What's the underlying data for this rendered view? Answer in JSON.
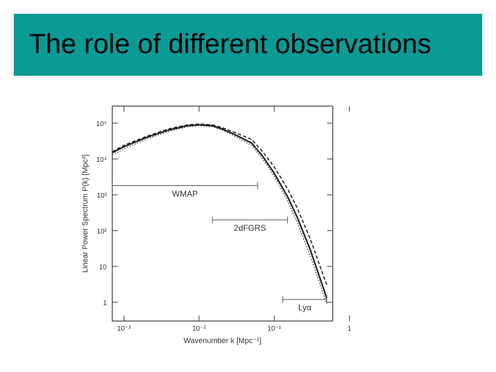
{
  "slide": {
    "title": "The role of different observations"
  },
  "colors": {
    "title_bar": "#0b9a96",
    "curve": "#222222"
  },
  "chart_data": {
    "type": "line",
    "title": "",
    "xlabel": "Wavenumber k [Mpc⁻¹]",
    "ylabel": "Linear Power Spectrum P(k) [Mpc³]",
    "xscale": "log",
    "yscale": "log",
    "xlim": [
      0.0007,
      0.6
    ],
    "ylim": [
      0.3,
      300000
    ],
    "x_ticks": [
      {
        "value": 0.001,
        "label": "10⁻³"
      },
      {
        "value": 0.01,
        "label": "10⁻²"
      },
      {
        "value": 0.1,
        "label": "10⁻¹"
      },
      {
        "value": 1,
        "label": "1"
      }
    ],
    "y_ticks": [
      {
        "value": 1,
        "label": "1"
      },
      {
        "value": 10,
        "label": "10"
      },
      {
        "value": 100,
        "label": "10²"
      },
      {
        "value": 1000,
        "label": "10³"
      },
      {
        "value": 10000,
        "label": "10⁴"
      },
      {
        "value": 100000,
        "label": "10⁵"
      }
    ],
    "series": [
      {
        "style": "solid",
        "x": [
          0.0007,
          0.001,
          0.002,
          0.004,
          0.007,
          0.01,
          0.015,
          0.02,
          0.03,
          0.05,
          0.07,
          0.1,
          0.15,
          0.2,
          0.3,
          0.5
        ],
        "y": [
          15000,
          22000,
          40000,
          65000,
          85000,
          90000,
          85000,
          70000,
          48000,
          28000,
          12000,
          4000,
          900,
          250,
          30,
          1.3
        ]
      },
      {
        "style": "dashed",
        "x": [
          0.0007,
          0.001,
          0.002,
          0.004,
          0.007,
          0.01,
          0.015,
          0.02,
          0.03,
          0.05,
          0.07,
          0.1,
          0.15,
          0.2,
          0.3,
          0.5
        ],
        "y": [
          16000,
          24000,
          43000,
          70000,
          90000,
          95000,
          90000,
          76000,
          55000,
          35000,
          16000,
          6000,
          1500,
          450,
          60,
          3
        ]
      },
      {
        "style": "dotted",
        "x": [
          0.0007,
          0.001,
          0.002,
          0.004,
          0.007,
          0.01,
          0.015,
          0.02,
          0.03,
          0.05,
          0.07,
          0.1,
          0.15,
          0.2,
          0.3,
          0.5
        ],
        "y": [
          13000,
          19000,
          36000,
          60000,
          80000,
          85000,
          80000,
          65000,
          43000,
          24000,
          10000,
          3300,
          700,
          180,
          20,
          0.9
        ]
      }
    ],
    "ranges": [
      {
        "label": "WMAP",
        "x_start": 0.0007,
        "x_end": 0.06,
        "y": 1800
      },
      {
        "label": "2dFGRS",
        "x_start": 0.015,
        "x_end": 0.15,
        "y": 200
      },
      {
        "label": "Lyα",
        "x_start": 0.13,
        "x_end": 0.5,
        "y": 1.2
      }
    ]
  }
}
